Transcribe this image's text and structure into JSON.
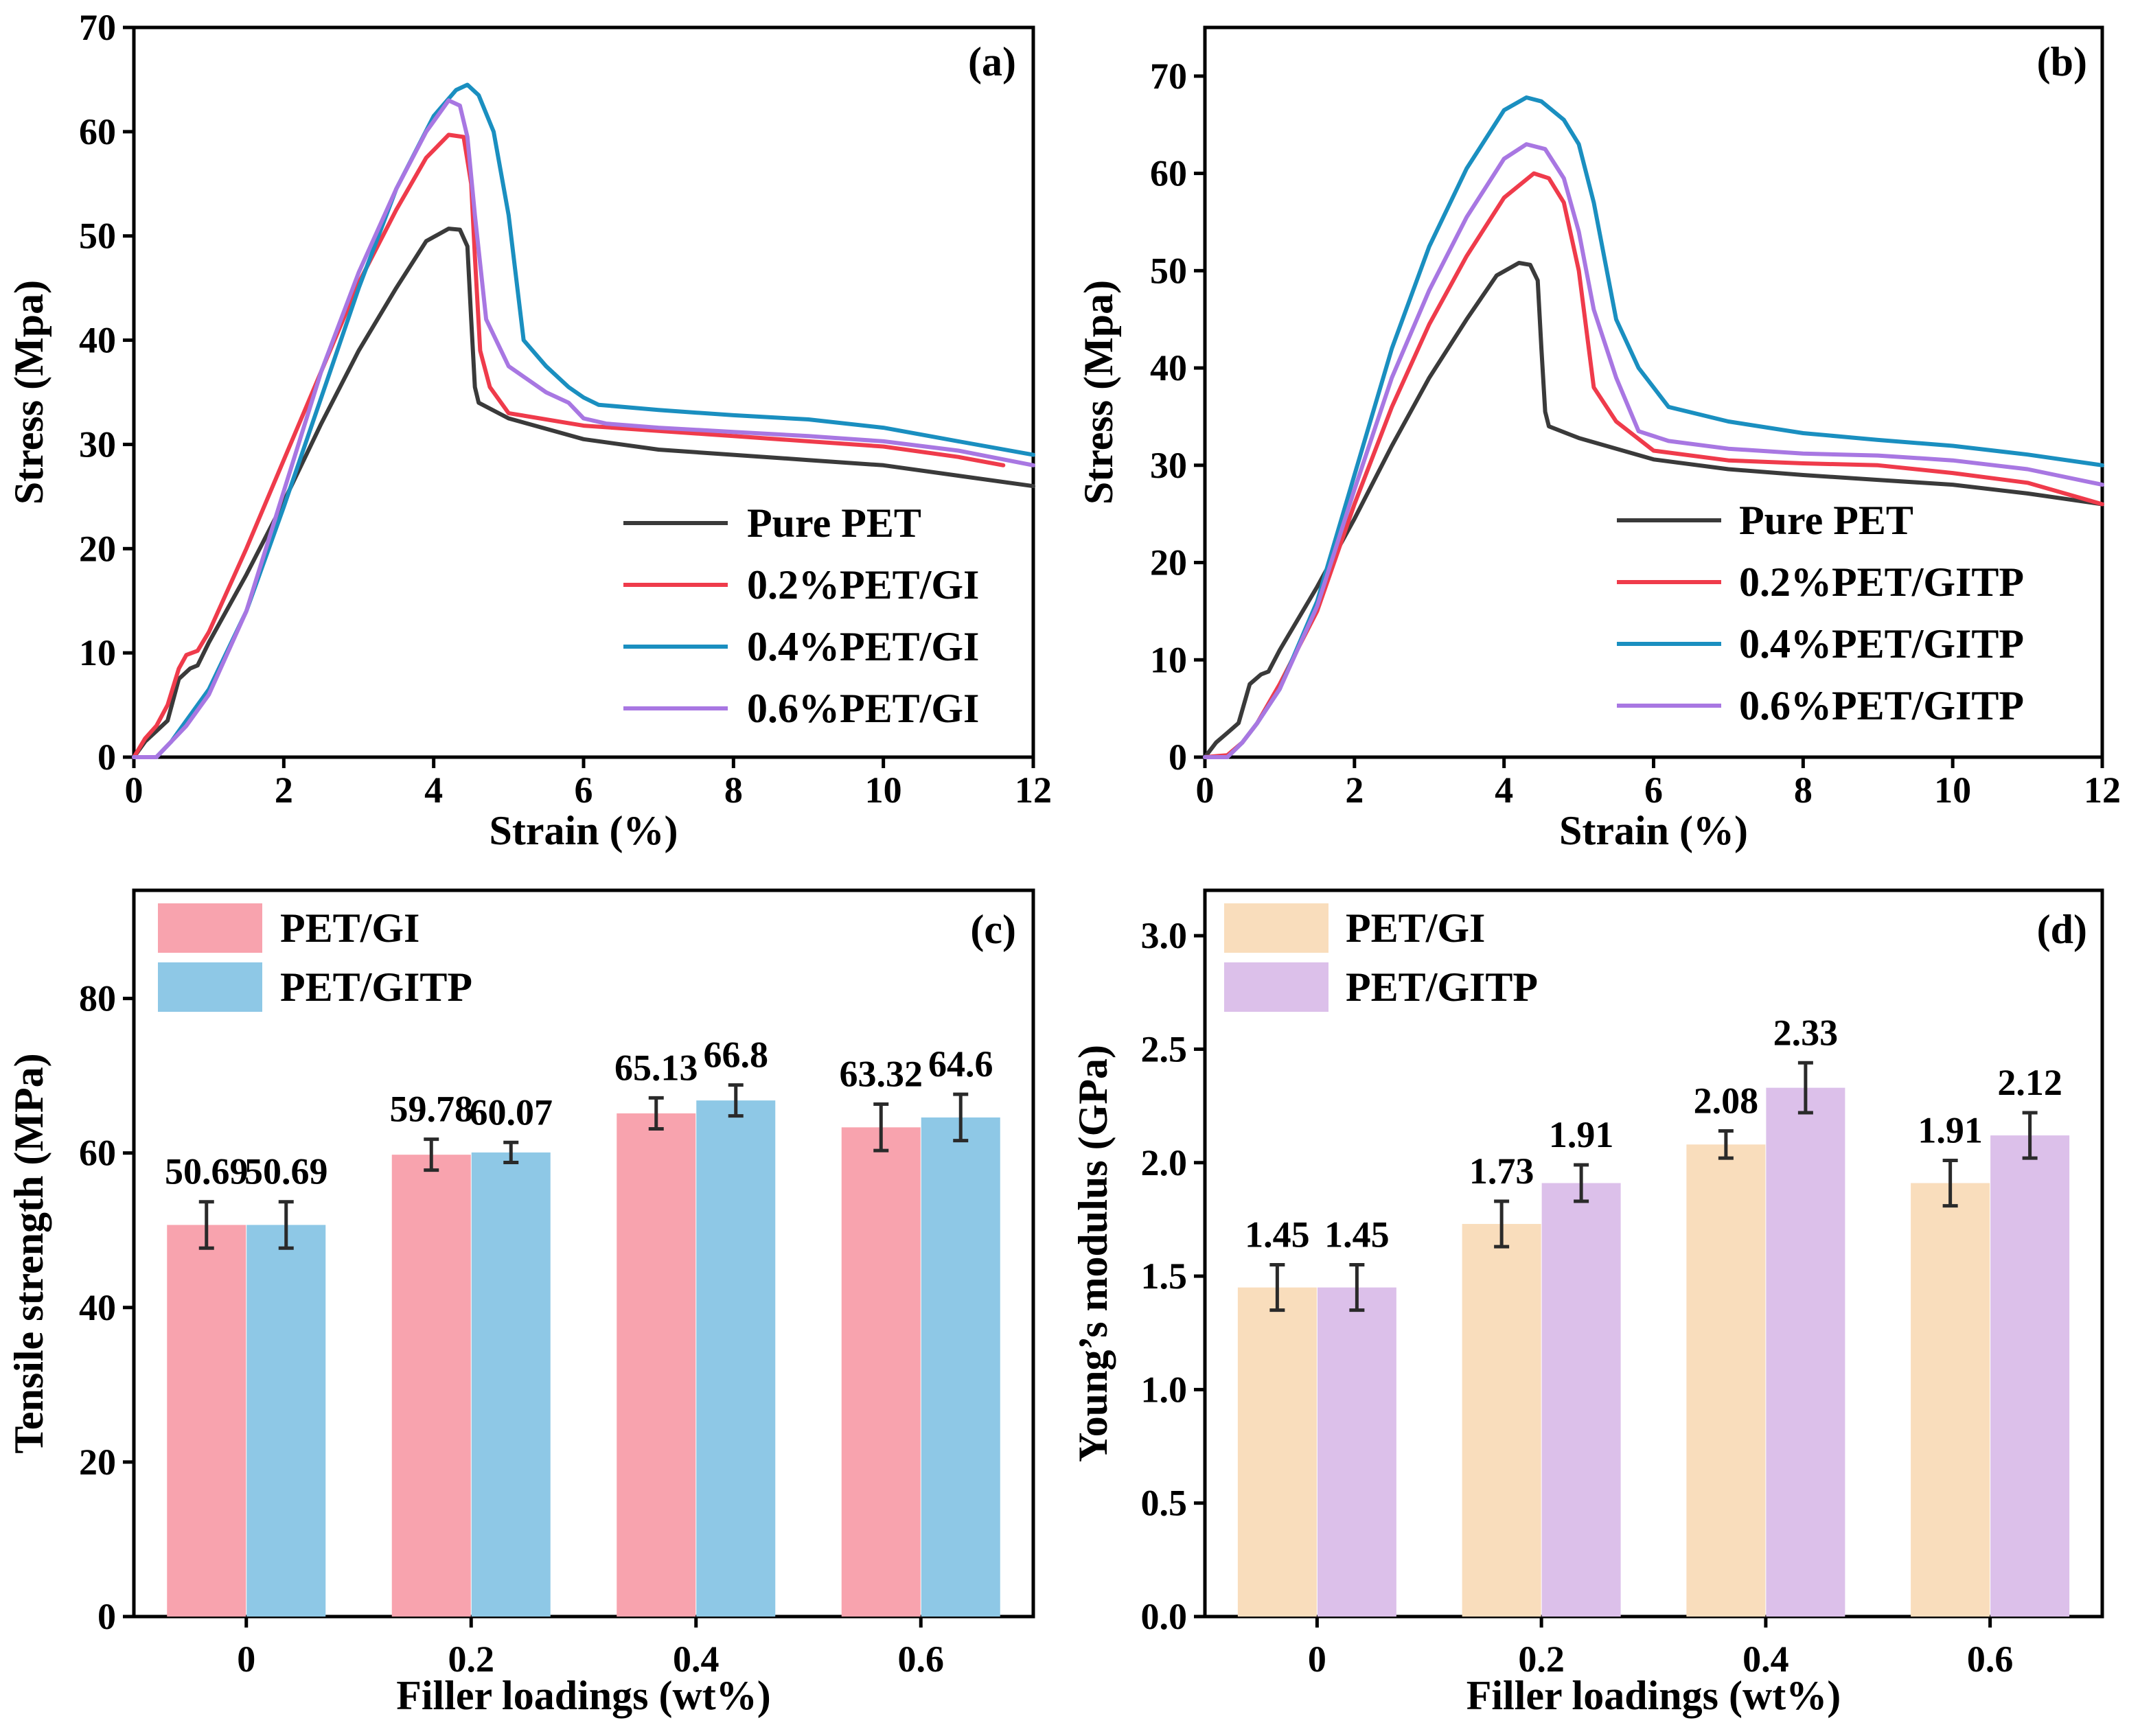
{
  "colors": {
    "pure": "#3a3a3a",
    "p02": "#ef3b4b",
    "p04": "#1a8fc0",
    "p06": "#a877e2",
    "gi_c": "#f8a3ae",
    "gitp_c": "#8ec8e6",
    "gi_d": "#f9ddbc",
    "gitp_d": "#dcc0ea"
  },
  "chart_data": [
    {
      "id": "a",
      "type": "line",
      "panel_label": "(a)",
      "xlabel": "Strain (%)",
      "ylabel": "Stress (Mpa)",
      "xlim": [
        0,
        12
      ],
      "ylim": [
        0,
        70
      ],
      "xticks": [
        0,
        2,
        4,
        6,
        8,
        10,
        12
      ],
      "yticks": [
        0,
        10,
        20,
        30,
        40,
        50,
        60,
        70
      ],
      "legend_position": "bottom-right",
      "series": [
        {
          "name": "Pure PET",
          "color_key": "pure",
          "points": [
            [
              0,
              0
            ],
            [
              0.15,
              1.5
            ],
            [
              0.3,
              2.5
            ],
            [
              0.45,
              3.5
            ],
            [
              0.6,
              7.5
            ],
            [
              0.75,
              8.5
            ],
            [
              0.85,
              8.8
            ],
            [
              1.0,
              11
            ],
            [
              1.5,
              17.5
            ],
            [
              2.0,
              24.5
            ],
            [
              2.5,
              32
            ],
            [
              3.0,
              39
            ],
            [
              3.5,
              45
            ],
            [
              3.9,
              49.5
            ],
            [
              4.2,
              50.7
            ],
            [
              4.35,
              50.6
            ],
            [
              4.45,
              49
            ],
            [
              4.5,
              42
            ],
            [
              4.55,
              35.5
            ],
            [
              4.6,
              34
            ],
            [
              5.0,
              32.5
            ],
            [
              6.0,
              30.5
            ],
            [
              7.0,
              29.5
            ],
            [
              8.0,
              29
            ],
            [
              9.0,
              28.5
            ],
            [
              10.0,
              28
            ],
            [
              11.0,
              27
            ],
            [
              12.0,
              26
            ]
          ]
        },
        {
          "name": "0.2%PET/GI",
          "color_key": "p02",
          "points": [
            [
              0,
              0
            ],
            [
              0.15,
              1.8
            ],
            [
              0.3,
              3
            ],
            [
              0.45,
              5
            ],
            [
              0.6,
              8.5
            ],
            [
              0.7,
              9.8
            ],
            [
              0.85,
              10.2
            ],
            [
              1.0,
              12
            ],
            [
              1.5,
              20
            ],
            [
              2.0,
              28.5
            ],
            [
              2.5,
              37
            ],
            [
              3.0,
              45.5
            ],
            [
              3.5,
              52.5
            ],
            [
              3.9,
              57.5
            ],
            [
              4.2,
              59.7
            ],
            [
              4.4,
              59.5
            ],
            [
              4.5,
              55
            ],
            [
              4.55,
              48
            ],
            [
              4.62,
              39
            ],
            [
              4.75,
              35.5
            ],
            [
              5.0,
              33
            ],
            [
              6.0,
              31.8
            ],
            [
              7.0,
              31.3
            ],
            [
              8.0,
              30.8
            ],
            [
              9.0,
              30.3
            ],
            [
              10.0,
              29.8
            ],
            [
              11.0,
              28.8
            ],
            [
              11.6,
              28
            ]
          ]
        },
        {
          "name": "0.4%PET/GI",
          "color_key": "p04",
          "points": [
            [
              0,
              0
            ],
            [
              0.3,
              0
            ],
            [
              0.5,
              1.5
            ],
            [
              0.7,
              3.5
            ],
            [
              1.0,
              6.5
            ],
            [
              1.5,
              14
            ],
            [
              2.0,
              24
            ],
            [
              2.5,
              34.5
            ],
            [
              3.0,
              45
            ],
            [
              3.5,
              54.5
            ],
            [
              4.0,
              61.5
            ],
            [
              4.3,
              64
            ],
            [
              4.45,
              64.5
            ],
            [
              4.6,
              63.5
            ],
            [
              4.8,
              60
            ],
            [
              5.0,
              52
            ],
            [
              5.2,
              40
            ],
            [
              5.5,
              37.5
            ],
            [
              5.8,
              35.5
            ],
            [
              6.0,
              34.5
            ],
            [
              6.2,
              33.8
            ],
            [
              7.0,
              33.3
            ],
            [
              8.0,
              32.8
            ],
            [
              9.0,
              32.4
            ],
            [
              10.0,
              31.6
            ],
            [
              11.0,
              30.3
            ],
            [
              12.0,
              29
            ]
          ]
        },
        {
          "name": "0.6%PET/GI",
          "color_key": "p06",
          "points": [
            [
              0,
              0
            ],
            [
              0.3,
              0
            ],
            [
              0.5,
              1.5
            ],
            [
              0.7,
              3
            ],
            [
              1.0,
              6
            ],
            [
              1.5,
              14
            ],
            [
              2.0,
              25.5
            ],
            [
              2.5,
              37
            ],
            [
              3.0,
              46.5
            ],
            [
              3.5,
              54.5
            ],
            [
              3.9,
              60
            ],
            [
              4.2,
              63
            ],
            [
              4.35,
              62.5
            ],
            [
              4.45,
              59.5
            ],
            [
              4.55,
              52
            ],
            [
              4.7,
              42
            ],
            [
              5.0,
              37.5
            ],
            [
              5.5,
              35
            ],
            [
              5.8,
              34
            ],
            [
              6.0,
              32.5
            ],
            [
              6.3,
              32
            ],
            [
              7.0,
              31.6
            ],
            [
              8.0,
              31.2
            ],
            [
              9.0,
              30.8
            ],
            [
              10.0,
              30.3
            ],
            [
              11.0,
              29.4
            ],
            [
              12.0,
              28
            ]
          ]
        }
      ]
    },
    {
      "id": "b",
      "type": "line",
      "panel_label": "(b)",
      "xlabel": "Strain (%)",
      "ylabel": "Stress (Mpa)",
      "xlim": [
        0,
        12
      ],
      "ylim": [
        0,
        75
      ],
      "xticks": [
        0,
        2,
        4,
        6,
        8,
        10,
        12
      ],
      "yticks": [
        0,
        10,
        20,
        30,
        40,
        50,
        60,
        70
      ],
      "legend_position": "bottom-right",
      "series": [
        {
          "name": "Pure PET",
          "color_key": "pure",
          "points": [
            [
              0,
              0
            ],
            [
              0.15,
              1.5
            ],
            [
              0.3,
              2.5
            ],
            [
              0.45,
              3.5
            ],
            [
              0.6,
              7.5
            ],
            [
              0.75,
              8.5
            ],
            [
              0.85,
              8.8
            ],
            [
              1.0,
              11
            ],
            [
              1.5,
              17.5
            ],
            [
              2.0,
              24.5
            ],
            [
              2.5,
              32
            ],
            [
              3.0,
              39
            ],
            [
              3.5,
              45
            ],
            [
              3.9,
              49.5
            ],
            [
              4.2,
              50.8
            ],
            [
              4.35,
              50.6
            ],
            [
              4.45,
              49
            ],
            [
              4.5,
              42
            ],
            [
              4.55,
              35.5
            ],
            [
              4.6,
              34
            ],
            [
              5.0,
              32.8
            ],
            [
              6.0,
              30.6
            ],
            [
              7.0,
              29.6
            ],
            [
              8.0,
              29
            ],
            [
              9.0,
              28.5
            ],
            [
              10.0,
              28
            ],
            [
              11.0,
              27.1
            ],
            [
              12.0,
              26
            ]
          ]
        },
        {
          "name": "0.2%PET/GITP",
          "color_key": "p02",
          "points": [
            [
              0,
              0
            ],
            [
              0.3,
              0.2
            ],
            [
              0.5,
              1.5
            ],
            [
              0.7,
              3.5
            ],
            [
              1.0,
              7.5
            ],
            [
              1.5,
              15
            ],
            [
              2.0,
              26
            ],
            [
              2.5,
              36
            ],
            [
              3.0,
              44.5
            ],
            [
              3.5,
              51.5
            ],
            [
              4.0,
              57.5
            ],
            [
              4.4,
              60
            ],
            [
              4.6,
              59.5
            ],
            [
              4.8,
              57
            ],
            [
              5.0,
              50
            ],
            [
              5.2,
              38
            ],
            [
              5.5,
              34.5
            ],
            [
              6.0,
              31.5
            ],
            [
              7.0,
              30.5
            ],
            [
              8.0,
              30.2
            ],
            [
              9.0,
              30
            ],
            [
              10.0,
              29.2
            ],
            [
              11.0,
              28.2
            ],
            [
              12.0,
              26
            ]
          ]
        },
        {
          "name": "0.4%PET/GITP",
          "color_key": "p04",
          "points": [
            [
              0,
              0
            ],
            [
              0.3,
              0
            ],
            [
              0.5,
              1.5
            ],
            [
              0.7,
              3.5
            ],
            [
              1.0,
              7
            ],
            [
              1.5,
              16
            ],
            [
              2.0,
              29
            ],
            [
              2.5,
              42
            ],
            [
              3.0,
              52.5
            ],
            [
              3.5,
              60.5
            ],
            [
              4.0,
              66.5
            ],
            [
              4.3,
              67.8
            ],
            [
              4.5,
              67.4
            ],
            [
              4.8,
              65.5
            ],
            [
              5.0,
              63
            ],
            [
              5.2,
              57
            ],
            [
              5.5,
              45
            ],
            [
              5.8,
              40
            ],
            [
              6.2,
              36
            ],
            [
              7.0,
              34.5
            ],
            [
              8.0,
              33.3
            ],
            [
              9.0,
              32.6
            ],
            [
              10.0,
              32
            ],
            [
              11.0,
              31.1
            ],
            [
              12.0,
              30
            ]
          ]
        },
        {
          "name": "0.6%PET/GITP",
          "color_key": "p06",
          "points": [
            [
              0,
              0
            ],
            [
              0.3,
              0
            ],
            [
              0.5,
              1.5
            ],
            [
              0.7,
              3.5
            ],
            [
              1.0,
              7
            ],
            [
              1.5,
              15.5
            ],
            [
              2.0,
              27.5
            ],
            [
              2.5,
              39
            ],
            [
              3.0,
              48
            ],
            [
              3.5,
              55.5
            ],
            [
              4.0,
              61.5
            ],
            [
              4.3,
              63
            ],
            [
              4.55,
              62.5
            ],
            [
              4.8,
              59.5
            ],
            [
              5.0,
              54
            ],
            [
              5.2,
              46
            ],
            [
              5.5,
              39
            ],
            [
              5.8,
              33.5
            ],
            [
              6.2,
              32.5
            ],
            [
              7.0,
              31.7
            ],
            [
              8.0,
              31.2
            ],
            [
              9.0,
              31
            ],
            [
              10.0,
              30.5
            ],
            [
              11.0,
              29.6
            ],
            [
              12.0,
              28
            ]
          ]
        }
      ]
    },
    {
      "id": "c",
      "type": "bar",
      "panel_label": "(c)",
      "xlabel": "Filler loadings (wt%)",
      "ylabel": "Tensile strength (MPa)",
      "categories": [
        "0",
        "0.2",
        "0.4",
        "0.6"
      ],
      "ylim": [
        0,
        94
      ],
      "yticks": [
        0,
        20,
        40,
        60,
        80
      ],
      "legend_position": "top-left",
      "series": [
        {
          "name": "PET/GI",
          "color_key": "gi_c",
          "values": [
            50.69,
            59.78,
            65.13,
            63.32
          ],
          "errors": [
            3,
            2,
            2,
            3
          ],
          "labels": [
            "50.69",
            "59.78",
            "65.13",
            "63.32"
          ]
        },
        {
          "name": "PET/GITP",
          "color_key": "gitp_c",
          "values": [
            50.69,
            60.07,
            66.8,
            64.6
          ],
          "errors": [
            3,
            1.3,
            2,
            3
          ],
          "labels": [
            "50.69",
            "60.07",
            "66.8",
            "64.6"
          ]
        }
      ]
    },
    {
      "id": "d",
      "type": "bar",
      "panel_label": "(d)",
      "xlabel": "Filler loadings (wt%)",
      "ylabel": "Young’s modulus (GPa)",
      "categories": [
        "0",
        "0.2",
        "0.4",
        "0.6"
      ],
      "ylim": [
        0,
        3.2
      ],
      "yticks": [
        0.0,
        0.5,
        1.0,
        1.5,
        2.0,
        2.5,
        3.0
      ],
      "ytick_labels": [
        "0.0",
        "0.5",
        "1.0",
        "1.5",
        "2.0",
        "2.5",
        "3.0"
      ],
      "legend_position": "top-left",
      "series": [
        {
          "name": "PET/GI",
          "color_key": "gi_d",
          "values": [
            1.45,
            1.73,
            2.08,
            1.91
          ],
          "errors": [
            0.1,
            0.1,
            0.06,
            0.1
          ],
          "labels": [
            "1.45",
            "1.73",
            "2.08",
            "1.91"
          ]
        },
        {
          "name": "PET/GITP",
          "color_key": "gitp_d",
          "values": [
            1.45,
            1.91,
            2.33,
            2.12
          ],
          "errors": [
            0.1,
            0.08,
            0.11,
            0.1
          ],
          "labels": [
            "1.45",
            "1.91",
            "2.33",
            "2.12"
          ]
        }
      ]
    }
  ]
}
